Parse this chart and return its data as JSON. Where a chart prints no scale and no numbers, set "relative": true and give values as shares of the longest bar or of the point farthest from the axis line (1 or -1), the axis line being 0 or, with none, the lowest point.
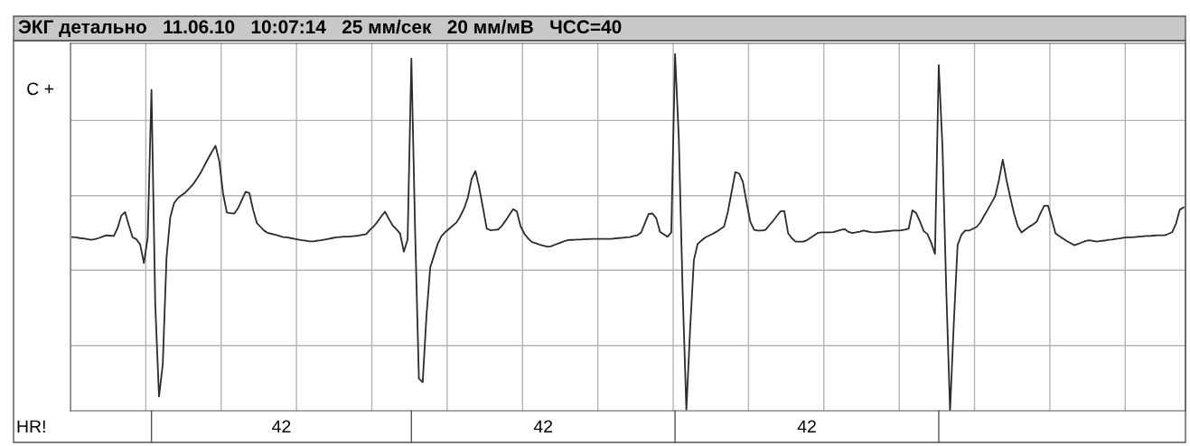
{
  "chart_data": {
    "type": "line",
    "title": "ЭКГ детально   11.06.10   10:07:14   25 мм/сек   20 мм/мВ   ЧСС=40",
    "relative": true,
    "grid": true,
    "marker": "none",
    "line_style": "solid",
    "annotations": [
      "C +",
      "HR!",
      "42",
      "42",
      "42"
    ],
    "categories": [
      null,
      null,
      null,
      null,
      null,
      null,
      null,
      null,
      null,
      null,
      null,
      null,
      null,
      null,
      null,
      null,
      null,
      null,
      null,
      null,
      null,
      null,
      null,
      null,
      null,
      null,
      null,
      null,
      null,
      null,
      null,
      null,
      null,
      null,
      null,
      null,
      null,
      null,
      null,
      null,
      null,
      null,
      null,
      null,
      null,
      null,
      null,
      null,
      null,
      null,
      null,
      null,
      null,
      null,
      null,
      null,
      null,
      null,
      null,
      null,
      null,
      null,
      null,
      null,
      null,
      null,
      null,
      null,
      null,
      null,
      null,
      null,
      null,
      null,
      null,
      null,
      null,
      null,
      null,
      null,
      null,
      null,
      null,
      null,
      null,
      null,
      null,
      null,
      null,
      null,
      null,
      null,
      null,
      null,
      null,
      null,
      null,
      null,
      null,
      null,
      null,
      null,
      null,
      null,
      null,
      null,
      null,
      null,
      null,
      null,
      null,
      null,
      null,
      null,
      null,
      null,
      null,
      null,
      null,
      null,
      null,
      null,
      null,
      null,
      null,
      null,
      null,
      null,
      null,
      null,
      null,
      null,
      null,
      null,
      null,
      null,
      null,
      null,
      null,
      null,
      null,
      null,
      null,
      null,
      null,
      null,
      null,
      null,
      null,
      null,
      null,
      null,
      null,
      null,
      null,
      null,
      null,
      null,
      null,
      null,
      null,
      null,
      null,
      null,
      null,
      null,
      null,
      null,
      null,
      null,
      null,
      null,
      null,
      null,
      null,
      null,
      null,
      null,
      null,
      null,
      null,
      null,
      null,
      null,
      null,
      null,
      null,
      null,
      null,
      null,
      null,
      null,
      null,
      null,
      null,
      null,
      null,
      null,
      null,
      null,
      null,
      null,
      null,
      null,
      null,
      null,
      null,
      null,
      null,
      null,
      null,
      null,
      null,
      null,
      null,
      null,
      null,
      null,
      null,
      null,
      null,
      null,
      null,
      null,
      null,
      null,
      null,
      null,
      null,
      null,
      null,
      null,
      null,
      null,
      null,
      null,
      null,
      null,
      null,
      null,
      null,
      null,
      null,
      null,
      null,
      null,
      null,
      null,
      null,
      null,
      null,
      null,
      null,
      null,
      null,
      null,
      null,
      null,
      null,
      null,
      null,
      null,
      null,
      null,
      null,
      null,
      null,
      null,
      null,
      null,
      null,
      null,
      null,
      null,
      null,
      null,
      null,
      null,
      null,
      null,
      null,
      null,
      null,
      null,
      null,
      null,
      null,
      null,
      null,
      null,
      null,
      null,
      null,
      null,
      null,
      null
    ],
    "series": [
      {
        "color": "#2b2b2b",
        "values": [
          0.487,
          0.486,
          0.484,
          0.483,
          0.481,
          0.479,
          0.481,
          0.484,
          0.488,
          0.492,
          0.491,
          0.49,
          0.512,
          0.547,
          0.557,
          0.52,
          0.486,
          0.481,
          0.466,
          0.414,
          0.485,
          0.899,
          0.3,
          0.04,
          0.13,
          0.43,
          0.543,
          0.582,
          0.596,
          0.604,
          0.612,
          0.623,
          0.634,
          0.65,
          0.666,
          0.686,
          0.706,
          0.725,
          0.743,
          0.7,
          0.61,
          0.556,
          0.554,
          0.553,
          0.568,
          0.591,
          0.614,
          0.61,
          0.563,
          0.526,
          0.515,
          0.504,
          0.498,
          0.496,
          0.493,
          0.49,
          0.487,
          0.486,
          0.484,
          0.482,
          0.48,
          0.478,
          0.477,
          0.475,
          0.475,
          0.477,
          0.478,
          0.48,
          0.482,
          0.484,
          0.486,
          0.487,
          0.488,
          0.488,
          0.489,
          0.49,
          0.491,
          0.493,
          0.495,
          0.507,
          0.517,
          0.53,
          0.545,
          0.558,
          0.538,
          0.52,
          0.509,
          0.497,
          0.446,
          0.48,
          0.987,
          0.5,
          0.09,
          0.08,
          0.265,
          0.402,
          0.435,
          0.468,
          0.49,
          0.501,
          0.51,
          0.519,
          0.528,
          0.546,
          0.567,
          0.598,
          0.65,
          0.672,
          0.626,
          0.569,
          0.511,
          0.506,
          0.507,
          0.508,
          0.518,
          0.533,
          0.549,
          0.565,
          0.559,
          0.517,
          0.496,
          0.483,
          0.473,
          0.47,
          0.466,
          0.463,
          0.46,
          0.461,
          0.465,
          0.469,
          0.473,
          0.477,
          0.479,
          0.479,
          0.48,
          0.48,
          0.481,
          0.481,
          0.482,
          0.482,
          0.482,
          0.482,
          0.482,
          0.482,
          0.483,
          0.484,
          0.485,
          0.486,
          0.487,
          0.49,
          0.492,
          0.5,
          0.526,
          0.552,
          0.553,
          0.54,
          0.502,
          0.495,
          0.488,
          0.5,
          1.0,
          0.763,
          0.34,
          0.003,
          0.23,
          0.423,
          0.468,
          0.477,
          0.486,
          0.491,
          0.496,
          0.502,
          0.509,
          0.516,
          0.557,
          0.613,
          0.669,
          0.665,
          0.642,
          0.583,
          0.529,
          0.507,
          0.505,
          0.505,
          0.507,
          0.52,
          0.532,
          0.546,
          0.559,
          0.56,
          0.498,
          0.484,
          0.474,
          0.474,
          0.474,
          0.478,
          0.485,
          0.492,
          0.499,
          0.5,
          0.5,
          0.5,
          0.501,
          0.504,
          0.507,
          0.509,
          0.502,
          0.498,
          0.5,
          0.502,
          0.505,
          0.503,
          0.501,
          0.5,
          0.501,
          0.502,
          0.503,
          0.504,
          0.505,
          0.505,
          0.506,
          0.508,
          0.51,
          0.562,
          0.554,
          0.531,
          0.504,
          0.495,
          0.471,
          0.44,
          0.969,
          0.737,
          0.337,
          0.0,
          0.246,
          0.464,
          0.493,
          0.505,
          0.505,
          0.51,
          0.515,
          0.527,
          0.546,
          0.564,
          0.583,
          0.602,
          0.648,
          0.704,
          0.646,
          0.598,
          0.553,
          0.517,
          0.5,
          0.508,
          0.516,
          0.522,
          0.53,
          0.554,
          0.575,
          0.575,
          0.537,
          0.497,
          0.49,
          0.483,
          0.476,
          0.47,
          0.464,
          0.468,
          0.472,
          0.476,
          0.478,
          0.476,
          0.474,
          0.476,
          0.477,
          0.479,
          0.48,
          0.482,
          0.483,
          0.485,
          0.486,
          0.486,
          0.487,
          0.488,
          0.489,
          0.49,
          0.49,
          0.491,
          0.492,
          0.492,
          0.492,
          0.496,
          0.501,
          0.525,
          0.564,
          0.57
        ]
      }
    ]
  }
}
